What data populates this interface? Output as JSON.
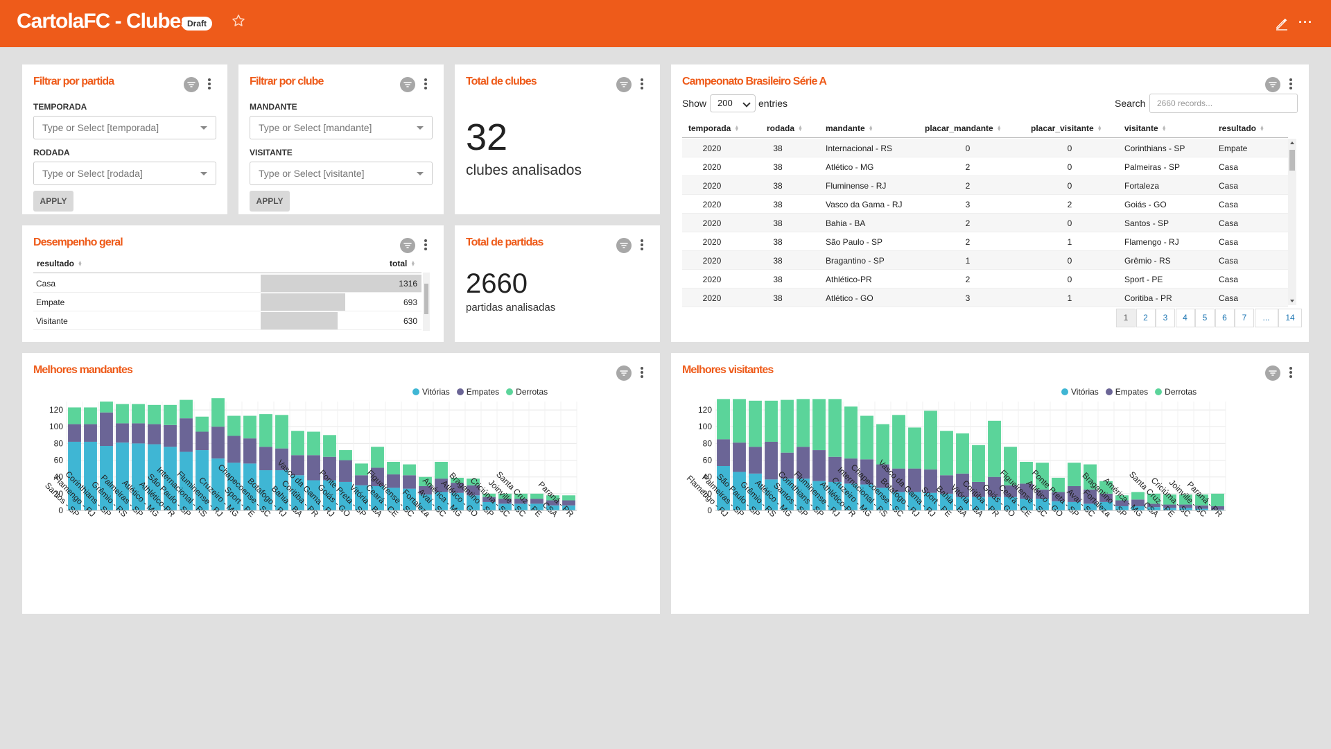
{
  "header": {
    "title": "CartolaFC - Clubes",
    "badge": "Draft",
    "bg_color": "#ee5b1a"
  },
  "filtro_partida": {
    "title": "Filtrar por partida",
    "fields": [
      {
        "label": "TEMPORADA",
        "placeholder": "Type or Select [temporada]"
      },
      {
        "label": "RODADA",
        "placeholder": "Type or Select [rodada]"
      }
    ],
    "apply_label": "APPLY"
  },
  "filtro_clube": {
    "title": "Filtrar por clube",
    "fields": [
      {
        "label": "MANDANTE",
        "placeholder": "Type or Select [mandante]"
      },
      {
        "label": "VISITANTE",
        "placeholder": "Type or Select [visitante]"
      }
    ],
    "apply_label": "APPLY"
  },
  "total_clubes": {
    "title": "Total de clubes",
    "value": "32",
    "subtitle": "clubes analisados"
  },
  "total_partidas": {
    "title": "Total de partidas",
    "value": "2660",
    "subtitle": "partidas analisadas"
  },
  "desempenho": {
    "title": "Desempenho geral",
    "columns": [
      "resultado",
      "total"
    ],
    "rows": [
      {
        "resultado": "Casa",
        "total": "1316"
      },
      {
        "resultado": "Empate",
        "total": "693"
      },
      {
        "resultado": "Visitante",
        "total": "630"
      }
    ]
  },
  "campeonato": {
    "title": "Campeonato Brasileiro Série A",
    "show_label": "Show",
    "show_value": "200",
    "entries_label": "entries",
    "search_label": "Search",
    "search_placeholder": "2660 records...",
    "columns": [
      "temporada",
      "rodada",
      "mandante",
      "placar_mandante",
      "placar_visitante",
      "visitante",
      "resultado"
    ],
    "rows": [
      [
        "2020",
        "38",
        "Internacional - RS",
        "0",
        "0",
        "Corinthians - SP",
        "Empate"
      ],
      [
        "2020",
        "38",
        "Atlético - MG",
        "2",
        "0",
        "Palmeiras - SP",
        "Casa"
      ],
      [
        "2020",
        "38",
        "Fluminense - RJ",
        "2",
        "0",
        "Fortaleza",
        "Casa"
      ],
      [
        "2020",
        "38",
        "Vasco da Gama - RJ",
        "3",
        "2",
        "Goiás - GO",
        "Casa"
      ],
      [
        "2020",
        "38",
        "Bahia - BA",
        "2",
        "0",
        "Santos - SP",
        "Casa"
      ],
      [
        "2020",
        "38",
        "São Paulo - SP",
        "2",
        "1",
        "Flamengo - RJ",
        "Casa"
      ],
      [
        "2020",
        "38",
        "Bragantino - SP",
        "1",
        "0",
        "Grêmio - RS",
        "Casa"
      ],
      [
        "2020",
        "38",
        "Athlético-PR",
        "2",
        "0",
        "Sport - PE",
        "Casa"
      ],
      [
        "2020",
        "38",
        "Atlético - GO",
        "3",
        "1",
        "Coritiba - PR",
        "Casa"
      ]
    ],
    "pages": [
      "1",
      "2",
      "3",
      "4",
      "5",
      "6",
      "7",
      "...",
      "14"
    ]
  },
  "icons": [
    "star-icon",
    "pencil-icon",
    "more-icon",
    "filter-icon",
    "kebab-icon"
  ],
  "series_colors": {
    "Vitórias": "#3fb6d4",
    "Empates": "#6b6596",
    "Derrotas": "#5bd49a"
  },
  "chart_data": [
    {
      "type": "bar",
      "stacked": true,
      "title": "Melhores mandantes",
      "legend_position": "top",
      "grid": true,
      "ylim": [
        0,
        130
      ],
      "yticks": [
        0,
        20,
        40,
        60,
        80,
        100,
        120
      ],
      "categories": [
        "Santos - SP",
        "Flamengo - RJ",
        "Corinthians - SP",
        "Grêmio - RS",
        "Palmeiras - SP",
        "Atlético - MG",
        "Athlético-PR",
        "São Paulo - SP",
        "Internacional - RS",
        "Fluminense - RJ",
        "Cruzeiro - MG",
        "Sport - PE",
        "Chapecoense - SC",
        "Botafogo - RJ",
        "Bahia - BA",
        "Coritiba - PR",
        "Vasco da Gama - RJ",
        "Goiás - GO",
        "Ponte Preta - SP",
        "Vitória - BA",
        "Ceará - CE",
        "Figueirense - SC",
        "Fortaleza",
        "Avaí - SC",
        "América - MG",
        "Atlético - GO",
        "Bragantino - SP",
        "Criciúma - SC",
        "Joinville - SC",
        "Santa Cruz - PE",
        "CSA",
        "Paraná - PR"
      ],
      "series": [
        {
          "name": "Vitórias",
          "values": [
            82,
            82,
            77,
            81,
            80,
            79,
            76,
            70,
            72,
            62,
            57,
            56,
            48,
            48,
            42,
            36,
            36,
            34,
            30,
            29,
            27,
            26,
            19,
            22,
            21,
            18,
            10,
            8,
            8,
            8,
            6,
            6
          ]
        },
        {
          "name": "Empates",
          "values": [
            21,
            21,
            40,
            23,
            24,
            24,
            26,
            40,
            22,
            38,
            32,
            30,
            28,
            26,
            24,
            30,
            28,
            26,
            12,
            22,
            16,
            16,
            10,
            16,
            12,
            12,
            6,
            6,
            6,
            6,
            6,
            6
          ]
        },
        {
          "name": "Derrotas",
          "values": [
            20,
            20,
            13,
            23,
            23,
            23,
            24,
            22,
            18,
            34,
            24,
            27,
            39,
            40,
            29,
            28,
            26,
            12,
            14,
            25,
            15,
            13,
            11,
            20,
            6,
            8,
            4,
            6,
            6,
            6,
            6,
            6
          ]
        }
      ]
    },
    {
      "type": "bar",
      "stacked": true,
      "title": "Melhores visitantes",
      "legend_position": "top",
      "grid": true,
      "ylim": [
        0,
        130
      ],
      "yticks": [
        0,
        20,
        40,
        60,
        80,
        100,
        120
      ],
      "categories": [
        "Flamengo - RJ",
        "Palmeiras - SP",
        "São Paulo - SP",
        "Grêmio - RS",
        "Atlético - MG",
        "Santos - SP",
        "Corinthians - SP",
        "Fluminense - RJ",
        "Athlético-PR",
        "Cruzeiro - MG",
        "Internacional - RS",
        "Chapecoense - SC",
        "Botafogo - RJ",
        "Vasco da Gama - RJ",
        "Sport - PE",
        "Bahia - BA",
        "Vitória - BA",
        "Coritiba - PR",
        "Goiás - GO",
        "Ceará - CE",
        "Figueirense - SC",
        "Atlético - GO",
        "Ponte Preta - SP",
        "Avaí - SC",
        "Fortaleza",
        "Bragantino - SP",
        "América - MG",
        "CSA",
        "Santa Cruz - PE",
        "Criciúma - SC",
        "Joinville - SC",
        "Paraná - PR"
      ],
      "series": [
        {
          "name": "Vitórias",
          "values": [
            53,
            46,
            44,
            37,
            38,
            38,
            35,
            34,
            32,
            31,
            27,
            22,
            22,
            21,
            20,
            16,
            16,
            16,
            16,
            14,
            14,
            11,
            10,
            8,
            10,
            5,
            5,
            4,
            3,
            3,
            2,
            1
          ]
        },
        {
          "name": "Empates",
          "values": [
            32,
            35,
            32,
            45,
            31,
            38,
            37,
            30,
            30,
            30,
            28,
            28,
            28,
            28,
            22,
            28,
            18,
            24,
            14,
            18,
            11,
            11,
            19,
            17,
            10,
            7,
            8,
            4,
            4,
            4,
            4,
            4
          ]
        },
        {
          "name": "Derrotas",
          "values": [
            48,
            52,
            55,
            49,
            63,
            57,
            61,
            69,
            62,
            52,
            48,
            64,
            49,
            70,
            53,
            48,
            44,
            67,
            46,
            26,
            32,
            17,
            28,
            30,
            15,
            6,
            9,
            12,
            12,
            12,
            13,
            15
          ]
        }
      ]
    }
  ]
}
